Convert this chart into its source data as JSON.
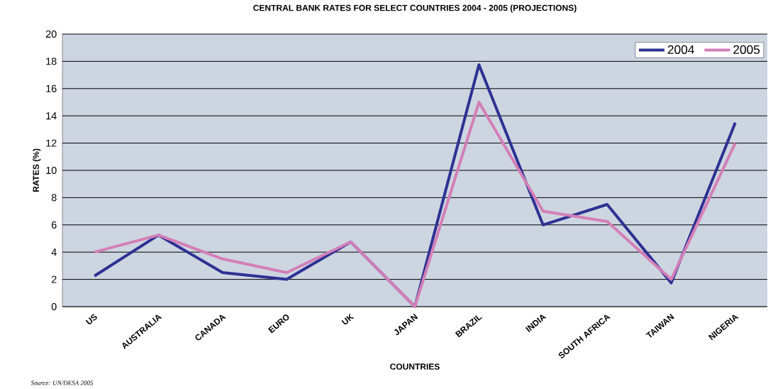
{
  "chart_data": {
    "type": "line",
    "title": "CENTRAL BANK RATES FOR SELECT COUNTRIES 2004 - 2005 (PROJECTIONS)",
    "xlabel": "COUNTRIES",
    "ylabel": "RATES (%)",
    "categories": [
      "US",
      "AUSTRALIA",
      "CANADA",
      "EURO",
      "UK",
      "JAPAN",
      "BRAZIL",
      "INDIA",
      "SOUTH AFRICA",
      "TAIWAN",
      "NIGERIA"
    ],
    "series": [
      {
        "name": "2004",
        "color": "#2e3192",
        "values": [
          2.25,
          5.25,
          2.5,
          2.0,
          4.75,
          0,
          17.75,
          6.0,
          7.5,
          1.75,
          13.5
        ]
      },
      {
        "name": "2005",
        "color": "#d37fb8",
        "values": [
          4.0,
          5.25,
          3.5,
          2.5,
          4.75,
          0,
          15.0,
          7.0,
          6.25,
          2.0,
          12.0
        ]
      }
    ],
    "ylim": [
      0,
      20
    ],
    "yticks": [
      0,
      2,
      4,
      6,
      8,
      10,
      12,
      14,
      16,
      18,
      20
    ],
    "grid": "y",
    "legend": "top right",
    "marker": "none",
    "line_style": "solid",
    "annotations": [
      "Source: UN/DESA 2005"
    ]
  }
}
